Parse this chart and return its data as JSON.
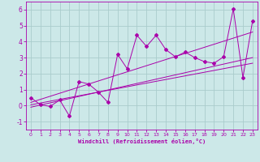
{
  "xlabel": "Windchill (Refroidissement éolien,°C)",
  "bg_color": "#cce8e8",
  "grid_color": "#aacccc",
  "line_color": "#aa00aa",
  "xlim": [
    -0.5,
    23.5
  ],
  "ylim": [
    -1.5,
    6.5
  ],
  "xticks": [
    0,
    1,
    2,
    3,
    4,
    5,
    6,
    7,
    8,
    9,
    10,
    11,
    12,
    13,
    14,
    15,
    16,
    17,
    18,
    19,
    20,
    21,
    22,
    23
  ],
  "yticks": [
    -1,
    0,
    1,
    2,
    3,
    4,
    5,
    6
  ],
  "series": {
    "line1": {
      "x": [
        0,
        1,
        2,
        3,
        4,
        5,
        6,
        7,
        8,
        9,
        10,
        11,
        12,
        13,
        14,
        15,
        16,
        17,
        18,
        19,
        20,
        21,
        22,
        23
      ],
      "y": [
        0.5,
        0.05,
        -0.05,
        0.35,
        -0.65,
        1.5,
        1.35,
        0.85,
        0.2,
        3.2,
        2.3,
        4.4,
        3.7,
        4.4,
        3.5,
        3.05,
        3.35,
        3.0,
        2.75,
        2.65,
        3.05,
        6.05,
        1.75,
        5.3
      ]
    },
    "line2": {
      "x": [
        0,
        23
      ],
      "y": [
        0.05,
        2.65
      ]
    },
    "line3": {
      "x": [
        0,
        23
      ],
      "y": [
        -0.1,
        3.0
      ]
    },
    "line4": {
      "x": [
        0,
        23
      ],
      "y": [
        0.2,
        4.6
      ]
    }
  }
}
